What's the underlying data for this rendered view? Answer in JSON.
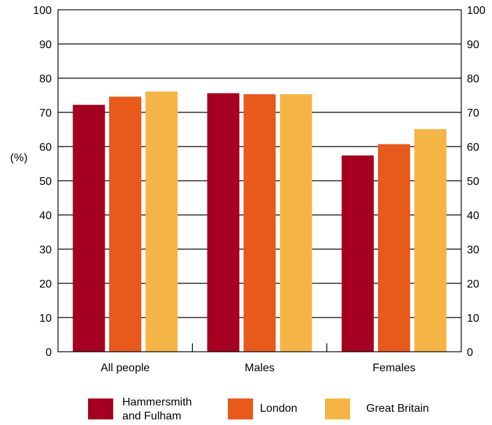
{
  "chart_data": {
    "type": "bar",
    "title": "",
    "xlabel": "",
    "ylabel": "(%)",
    "ylim": [
      0,
      100
    ],
    "yticks": [
      0,
      10,
      20,
      30,
      40,
      50,
      60,
      70,
      80,
      90,
      100
    ],
    "y_axis_both_sides": true,
    "grid": true,
    "legend_position": "bottom",
    "categories": [
      "All people",
      "Males",
      "Females"
    ],
    "series": [
      {
        "name_lines": [
          "Hammersmith",
          "and Fulham"
        ],
        "color": "#A50021",
        "values": [
          72.2,
          75.6,
          57.4
        ]
      },
      {
        "name_lines": [
          "London"
        ],
        "color": "#E8591C",
        "values": [
          74.6,
          75.3,
          60.7
        ]
      },
      {
        "name_lines": [
          "Great Britain"
        ],
        "color": "#F5B546",
        "values": [
          76.1,
          75.3,
          65.1
        ]
      }
    ]
  }
}
